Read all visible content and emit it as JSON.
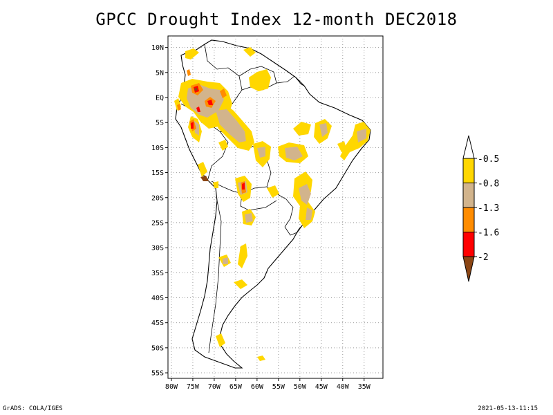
{
  "title": "GPCC Drought Index 12-month DEC2018",
  "map": {
    "lon_range": [
      -81,
      -30
    ],
    "lat_range": [
      -56,
      12
    ],
    "lat_ticks": [
      "10N",
      "5N",
      "EQ",
      "5S",
      "10S",
      "15S",
      "20S",
      "25S",
      "30S",
      "35S",
      "40S",
      "45S",
      "50S",
      "55S"
    ],
    "lon_ticks": [
      "80W",
      "75W",
      "70W",
      "65W",
      "60W",
      "55W",
      "50W",
      "45W",
      "40W",
      "35W"
    ],
    "gridlines": "dotted"
  },
  "colorbar": {
    "labels": [
      "-0.5",
      "-0.8",
      "-1.3",
      "-1.6",
      "-2"
    ],
    "colors": [
      "#ffffff",
      "#ffd700",
      "#d2b48c",
      "#ff8c00",
      "#ff0000",
      "#8b4513"
    ]
  },
  "footer": {
    "left": "GrADS: COLA/IGES",
    "right": "2021-05-13-11:15"
  }
}
